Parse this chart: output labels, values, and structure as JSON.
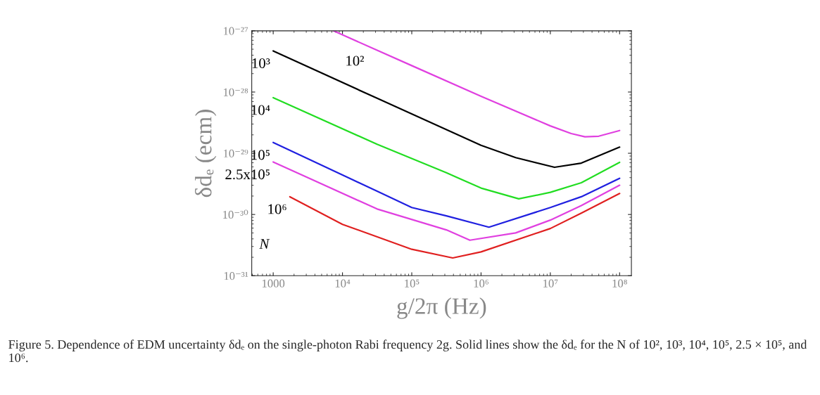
{
  "chart_data": {
    "type": "line",
    "xlabel": "g/2π (Hz)",
    "ylabel": "δdₑ (ecm)",
    "log": "xy",
    "grid": false,
    "legend": false,
    "xlim": [
      490,
      148000000
    ],
    "ylim": [
      1e-31,
      1e-27
    ],
    "xticks": [
      {
        "value": 1000,
        "label": "1000"
      },
      {
        "value": 10000,
        "label": "10⁴"
      },
      {
        "value": 100000,
        "label": "10⁵"
      },
      {
        "value": 1000000,
        "label": "10⁶"
      },
      {
        "value": 10000000,
        "label": "10⁷"
      },
      {
        "value": 100000000,
        "label": "10⁸"
      }
    ],
    "yticks": [
      {
        "value": 1e-31,
        "label": "10⁻³¹"
      },
      {
        "value": 1e-30,
        "label": "10⁻³⁰"
      },
      {
        "value": 1e-29,
        "label": "10⁻²⁹"
      },
      {
        "value": 1e-28,
        "label": "10⁻²⁸"
      },
      {
        "value": 1e-27,
        "label": "10⁻²⁷"
      }
    ],
    "series": [
      {
        "name": "10²",
        "color": "#e040e0",
        "x": [
          7400,
          100000,
          1000000,
          10000000,
          20000000,
          31600000,
          50000000,
          100000000
        ],
        "values": [
          1e-27,
          2.7e-28,
          8.5e-29,
          2.8e-29,
          2.1e-29,
          1.86e-29,
          1.9e-29,
          2.35e-29
        ]
      },
      {
        "name": "10³",
        "color": "#000000",
        "x": [
          1000,
          31600,
          1000000,
          3160000,
          11500000,
          28000000,
          100000000
        ],
        "values": [
          4.7e-28,
          7.9e-29,
          1.35e-29,
          8.5e-30,
          5.9e-30,
          6.9e-30,
          1.26e-29
        ]
      },
      {
        "name": "10⁴",
        "color": "#22dd22",
        "x": [
          1000,
          31600,
          316000,
          1000000,
          3500000,
          10000000,
          28000000,
          100000000
        ],
        "values": [
          8.1e-29,
          1.4e-29,
          4.8e-30,
          2.7e-30,
          1.8e-30,
          2.3e-30,
          3.3e-30,
          7.1e-30
        ]
      },
      {
        "name": "10⁵",
        "color": "#2020e0",
        "x": [
          1000,
          31600,
          100000,
          316000,
          1300000,
          10000000,
          28000000,
          100000000
        ],
        "values": [
          1.5e-29,
          2.4e-30,
          1.3e-30,
          9.5e-31,
          6.2e-31,
          1.3e-30,
          1.95e-30,
          3.9e-30
        ]
      },
      {
        "name": "2.5x10⁵",
        "color": "#e040e0",
        "x": [
          1000,
          31600,
          316000,
          690000,
          3160000,
          10000000,
          28000000,
          100000000
        ],
        "values": [
          7.2e-30,
          1.23e-30,
          5.6e-31,
          3.8e-31,
          5e-31,
          8.1e-31,
          1.4e-30,
          3e-30
        ]
      },
      {
        "name": "10⁶",
        "color": "#e02020",
        "x": [
          1740,
          10000,
          100000,
          390000,
          1000000,
          10000000,
          28000000,
          100000000
        ],
        "values": [
          1.95e-30,
          6.9e-31,
          2.7e-31,
          1.95e-31,
          2.45e-31,
          5.9e-31,
          1.05e-30,
          2.2e-30
        ]
      }
    ],
    "legend_title": "N",
    "annotations": [
      "Figure 5. Dependence of EDM uncertainty δdₑ on the single-photon Rabi frequency 2g. Solid lines show the δdₑ for the N of 10², 10³, 10⁴, 10⁵, 2.5 × 10⁵, and 10⁶."
    ]
  }
}
